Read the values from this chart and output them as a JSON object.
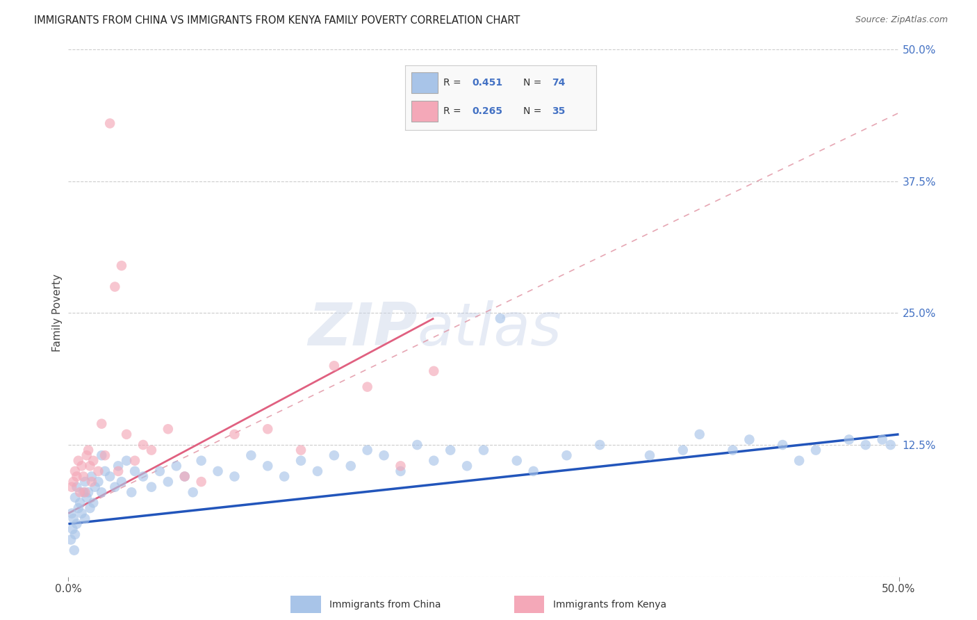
{
  "title": "IMMIGRANTS FROM CHINA VS IMMIGRANTS FROM KENYA FAMILY POVERTY CORRELATION CHART",
  "source": "Source: ZipAtlas.com",
  "ylabel": "Family Poverty",
  "xlim": [
    0.0,
    50.0
  ],
  "ylim": [
    0.0,
    50.0
  ],
  "color_china": "#a8c4e8",
  "color_kenya": "#f4a8b8",
  "color_china_line": "#2255bb",
  "color_kenya_line": "#e06080",
  "color_dashed_line": "#e090a0",
  "background_color": "#ffffff",
  "grid_color": "#cccccc",
  "china_line_x0": 0.0,
  "china_line_y0": 5.0,
  "china_line_x1": 50.0,
  "china_line_y1": 13.5,
  "kenya_line_x0": 0.0,
  "kenya_line_y0": 6.0,
  "kenya_line_x1": 22.0,
  "kenya_line_y1": 24.5,
  "kenya_dash_x0": 0.0,
  "kenya_dash_y0": 6.0,
  "kenya_dash_x1": 50.0,
  "kenya_dash_y1": 44.0,
  "china_scatter_x": [
    0.2,
    0.3,
    0.4,
    0.4,
    0.5,
    0.5,
    0.6,
    0.7,
    0.8,
    0.9,
    1.0,
    1.0,
    1.1,
    1.2,
    1.3,
    1.4,
    1.5,
    1.6,
    1.8,
    2.0,
    2.0,
    2.2,
    2.5,
    2.8,
    3.0,
    3.2,
    3.5,
    3.8,
    4.0,
    4.5,
    5.0,
    5.5,
    6.0,
    6.5,
    7.0,
    7.5,
    8.0,
    9.0,
    10.0,
    11.0,
    12.0,
    13.0,
    14.0,
    15.0,
    16.0,
    17.0,
    18.0,
    19.0,
    20.0,
    21.0,
    22.0,
    23.0,
    24.0,
    25.0,
    27.0,
    28.0,
    30.0,
    32.0,
    35.0,
    37.0,
    38.0,
    40.0,
    41.0,
    43.0,
    44.0,
    45.0,
    47.0,
    48.0,
    49.0,
    49.5,
    0.15,
    0.25,
    0.35,
    26.0
  ],
  "china_scatter_y": [
    6.0,
    5.5,
    4.0,
    7.5,
    5.0,
    8.5,
    6.5,
    7.0,
    6.0,
    8.0,
    5.5,
    9.0,
    7.5,
    8.0,
    6.5,
    9.5,
    7.0,
    8.5,
    9.0,
    8.0,
    11.5,
    10.0,
    9.5,
    8.5,
    10.5,
    9.0,
    11.0,
    8.0,
    10.0,
    9.5,
    8.5,
    10.0,
    9.0,
    10.5,
    9.5,
    8.0,
    11.0,
    10.0,
    9.5,
    11.5,
    10.5,
    9.5,
    11.0,
    10.0,
    11.5,
    10.5,
    12.0,
    11.5,
    10.0,
    12.5,
    11.0,
    12.0,
    10.5,
    12.0,
    11.0,
    10.0,
    11.5,
    12.5,
    11.5,
    12.0,
    13.5,
    12.0,
    13.0,
    12.5,
    11.0,
    12.0,
    13.0,
    12.5,
    13.0,
    12.5,
    3.5,
    4.5,
    2.5,
    24.5
  ],
  "kenya_scatter_x": [
    0.2,
    0.3,
    0.4,
    0.5,
    0.6,
    0.7,
    0.8,
    0.9,
    1.0,
    1.1,
    1.2,
    1.3,
    1.4,
    1.5,
    1.8,
    2.0,
    2.2,
    2.5,
    3.0,
    3.5,
    4.0,
    5.0,
    6.0,
    7.0,
    8.0,
    10.0,
    12.0,
    14.0,
    16.0,
    18.0,
    20.0,
    22.0,
    2.8,
    3.2,
    4.5
  ],
  "kenya_scatter_y": [
    8.5,
    9.0,
    10.0,
    9.5,
    11.0,
    8.0,
    10.5,
    9.5,
    8.0,
    11.5,
    12.0,
    10.5,
    9.0,
    11.0,
    10.0,
    14.5,
    11.5,
    43.0,
    10.0,
    13.5,
    11.0,
    12.0,
    14.0,
    9.5,
    9.0,
    13.5,
    14.0,
    12.0,
    20.0,
    18.0,
    10.5,
    19.5,
    27.5,
    29.5,
    12.5
  ]
}
